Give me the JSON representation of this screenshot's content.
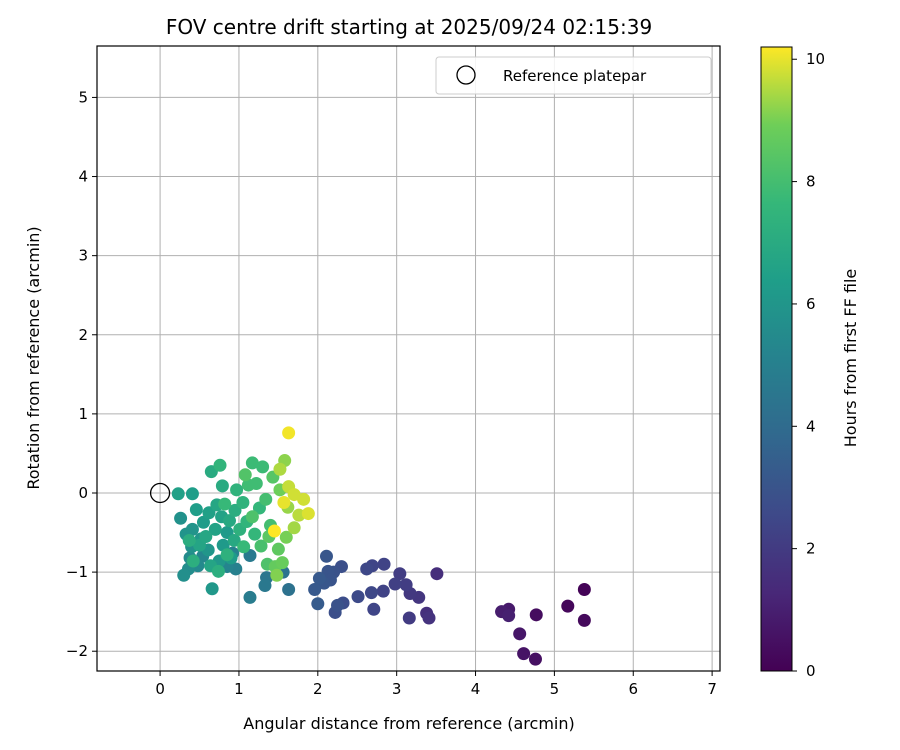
{
  "chart_data": {
    "type": "scatter",
    "title": "FOV centre drift starting at 2025/09/24 02:15:39",
    "xlabel": "Angular distance from reference (arcmin)",
    "ylabel": "Rotation from reference (arcmin)",
    "xlim": [
      -0.8,
      7.1
    ],
    "ylim": [
      -2.25,
      5.65
    ],
    "xticks": [
      0,
      1,
      2,
      3,
      4,
      5,
      6,
      7
    ],
    "yticks": [
      -2,
      -1,
      0,
      1,
      2,
      3,
      4,
      5
    ],
    "grid": true,
    "legend": {
      "position": "top-right",
      "entries": [
        "Reference platepar"
      ]
    },
    "reference_point": {
      "x": 0,
      "y": 0,
      "label": "Reference platepar"
    },
    "colorbar": {
      "label": "Hours from first FF file",
      "range": [
        0,
        10.2
      ],
      "ticks": [
        0,
        2,
        4,
        6,
        8,
        10
      ],
      "colormap": "viridis"
    },
    "points": [
      {
        "x": 5.38,
        "y": -1.22,
        "t": 0.1
      },
      {
        "x": 5.17,
        "y": -1.43,
        "t": 0.2
      },
      {
        "x": 5.38,
        "y": -1.61,
        "t": 0.3
      },
      {
        "x": 4.77,
        "y": -1.54,
        "t": 0.4
      },
      {
        "x": 4.76,
        "y": -2.1,
        "t": 0.5
      },
      {
        "x": 4.61,
        "y": -2.03,
        "t": 0.6
      },
      {
        "x": 4.56,
        "y": -1.78,
        "t": 0.7
      },
      {
        "x": 4.42,
        "y": -1.47,
        "t": 0.8
      },
      {
        "x": 4.33,
        "y": -1.5,
        "t": 0.9
      },
      {
        "x": 4.42,
        "y": -1.55,
        "t": 1.0
      },
      {
        "x": 3.51,
        "y": -1.02,
        "t": 1.5
      },
      {
        "x": 3.38,
        "y": -1.52,
        "t": 1.6
      },
      {
        "x": 3.41,
        "y": -1.58,
        "t": 1.7
      },
      {
        "x": 3.28,
        "y": -1.32,
        "t": 1.8
      },
      {
        "x": 3.17,
        "y": -1.27,
        "t": 1.9
      },
      {
        "x": 3.16,
        "y": -1.58,
        "t": 2.0
      },
      {
        "x": 3.12,
        "y": -1.16,
        "t": 2.1
      },
      {
        "x": 3.04,
        "y": -1.02,
        "t": 2.1
      },
      {
        "x": 2.98,
        "y": -1.15,
        "t": 2.2
      },
      {
        "x": 2.84,
        "y": -0.9,
        "t": 2.3
      },
      {
        "x": 2.83,
        "y": -1.24,
        "t": 2.3
      },
      {
        "x": 2.69,
        "y": -0.92,
        "t": 2.4
      },
      {
        "x": 2.71,
        "y": -1.47,
        "t": 2.4
      },
      {
        "x": 2.62,
        "y": -0.96,
        "t": 2.5
      },
      {
        "x": 2.68,
        "y": -1.26,
        "t": 2.5
      },
      {
        "x": 2.51,
        "y": -1.31,
        "t": 2.6
      },
      {
        "x": 2.32,
        "y": -1.39,
        "t": 2.7
      },
      {
        "x": 2.3,
        "y": -0.93,
        "t": 2.8
      },
      {
        "x": 2.22,
        "y": -1.51,
        "t": 2.8
      },
      {
        "x": 2.25,
        "y": -1.42,
        "t": 2.9
      },
      {
        "x": 2.2,
        "y": -1.0,
        "t": 2.9
      },
      {
        "x": 2.13,
        "y": -0.99,
        "t": 3.0
      },
      {
        "x": 2.16,
        "y": -1.1,
        "t": 3.0
      },
      {
        "x": 2.11,
        "y": -0.8,
        "t": 3.1
      },
      {
        "x": 2.08,
        "y": -1.14,
        "t": 3.1
      },
      {
        "x": 2.02,
        "y": -1.08,
        "t": 3.2
      },
      {
        "x": 1.96,
        "y": -1.22,
        "t": 3.2
      },
      {
        "x": 2.0,
        "y": -1.4,
        "t": 3.3
      },
      {
        "x": 1.63,
        "y": -1.22,
        "t": 4.3
      },
      {
        "x": 1.56,
        "y": -1.0,
        "t": 4.4
      },
      {
        "x": 1.35,
        "y": -1.07,
        "t": 4.5
      },
      {
        "x": 1.33,
        "y": -1.17,
        "t": 4.6
      },
      {
        "x": 1.14,
        "y": -0.79,
        "t": 4.7
      },
      {
        "x": 1.14,
        "y": -1.32,
        "t": 4.8
      },
      {
        "x": 0.96,
        "y": -0.96,
        "t": 5.0
      },
      {
        "x": 0.92,
        "y": -0.76,
        "t": 5.1
      },
      {
        "x": 0.85,
        "y": -0.93,
        "t": 5.2
      },
      {
        "x": 0.54,
        "y": -0.8,
        "t": 5.3
      },
      {
        "x": 0.48,
        "y": -0.92,
        "t": 5.4
      },
      {
        "x": 0.38,
        "y": -0.82,
        "t": 5.5
      },
      {
        "x": 0.36,
        "y": -0.96,
        "t": 5.6
      },
      {
        "x": 0.3,
        "y": -1.04,
        "t": 5.7
      },
      {
        "x": 0.26,
        "y": -0.32,
        "t": 5.8
      },
      {
        "x": 0.4,
        "y": -0.68,
        "t": 5.8
      },
      {
        "x": 0.33,
        "y": -0.52,
        "t": 5.9
      },
      {
        "x": 0.41,
        "y": -0.46,
        "t": 5.9
      },
      {
        "x": 0.52,
        "y": -0.58,
        "t": 6.0
      },
      {
        "x": 0.61,
        "y": -0.72,
        "t": 6.0
      },
      {
        "x": 0.66,
        "y": -1.21,
        "t": 6.1
      },
      {
        "x": 0.75,
        "y": -0.86,
        "t": 6.1
      },
      {
        "x": 0.8,
        "y": -0.66,
        "t": 6.2
      },
      {
        "x": 0.85,
        "y": -0.5,
        "t": 6.2
      },
      {
        "x": 0.9,
        "y": -0.82,
        "t": 6.3
      },
      {
        "x": 0.55,
        "y": -0.37,
        "t": 6.3
      },
      {
        "x": 0.46,
        "y": -0.21,
        "t": 6.4
      },
      {
        "x": 0.41,
        "y": -0.01,
        "t": 6.4
      },
      {
        "x": 0.23,
        "y": -0.01,
        "t": 6.5
      },
      {
        "x": 0.62,
        "y": -0.25,
        "t": 6.5
      },
      {
        "x": 0.7,
        "y": -0.46,
        "t": 6.6
      },
      {
        "x": 0.78,
        "y": -0.3,
        "t": 6.6
      },
      {
        "x": 0.64,
        "y": -0.92,
        "t": 6.7
      },
      {
        "x": 0.5,
        "y": -0.66,
        "t": 6.7
      },
      {
        "x": 0.58,
        "y": -0.55,
        "t": 6.8
      },
      {
        "x": 0.72,
        "y": -0.15,
        "t": 6.8
      },
      {
        "x": 0.88,
        "y": -0.35,
        "t": 6.9
      },
      {
        "x": 0.94,
        "y": -0.6,
        "t": 6.9
      },
      {
        "x": 0.65,
        "y": 0.27,
        "t": 7.0
      },
      {
        "x": 0.79,
        "y": 0.09,
        "t": 7.0
      },
      {
        "x": 0.95,
        "y": -0.22,
        "t": 7.1
      },
      {
        "x": 0.37,
        "y": -0.6,
        "t": 7.1
      },
      {
        "x": 0.42,
        "y": -0.86,
        "t": 7.2
      },
      {
        "x": 0.74,
        "y": -0.99,
        "t": 7.2
      },
      {
        "x": 0.85,
        "y": -0.78,
        "t": 7.3
      },
      {
        "x": 1.01,
        "y": -0.46,
        "t": 7.3
      },
      {
        "x": 1.05,
        "y": -0.12,
        "t": 7.4
      },
      {
        "x": 0.97,
        "y": 0.04,
        "t": 7.4
      },
      {
        "x": 0.76,
        "y": 0.35,
        "t": 7.5
      },
      {
        "x": 1.1,
        "y": -0.36,
        "t": 7.5
      },
      {
        "x": 1.2,
        "y": -0.52,
        "t": 7.6
      },
      {
        "x": 1.26,
        "y": -0.19,
        "t": 7.6
      },
      {
        "x": 1.06,
        "y": -0.68,
        "t": 7.7
      },
      {
        "x": 0.82,
        "y": -0.14,
        "t": 7.7
      },
      {
        "x": 1.17,
        "y": 0.38,
        "t": 7.8
      },
      {
        "x": 1.3,
        "y": 0.33,
        "t": 7.8
      },
      {
        "x": 1.12,
        "y": 0.1,
        "t": 7.9
      },
      {
        "x": 1.22,
        "y": 0.12,
        "t": 7.9
      },
      {
        "x": 1.34,
        "y": -0.08,
        "t": 8.0
      },
      {
        "x": 1.4,
        "y": -0.41,
        "t": 8.0
      },
      {
        "x": 1.28,
        "y": -0.67,
        "t": 8.1
      },
      {
        "x": 1.36,
        "y": -0.9,
        "t": 8.2
      },
      {
        "x": 1.17,
        "y": -0.3,
        "t": 8.2
      },
      {
        "x": 1.08,
        "y": 0.23,
        "t": 8.3
      },
      {
        "x": 1.43,
        "y": 0.2,
        "t": 8.4
      },
      {
        "x": 1.38,
        "y": -0.55,
        "t": 8.5
      },
      {
        "x": 1.5,
        "y": -0.71,
        "t": 8.6
      },
      {
        "x": 1.46,
        "y": -0.93,
        "t": 8.7
      },
      {
        "x": 1.55,
        "y": -0.88,
        "t": 8.8
      },
      {
        "x": 1.52,
        "y": 0.04,
        "t": 8.9
      },
      {
        "x": 1.6,
        "y": -0.56,
        "t": 9.0
      },
      {
        "x": 1.48,
        "y": -1.04,
        "t": 9.1
      },
      {
        "x": 1.58,
        "y": 0.41,
        "t": 9.2
      },
      {
        "x": 1.62,
        "y": -0.18,
        "t": 9.3
      },
      {
        "x": 1.7,
        "y": -0.44,
        "t": 9.4
      },
      {
        "x": 1.52,
        "y": 0.3,
        "t": 9.5
      },
      {
        "x": 1.76,
        "y": -0.28,
        "t": 9.6
      },
      {
        "x": 1.63,
        "y": 0.08,
        "t": 9.7
      },
      {
        "x": 1.7,
        "y": -0.02,
        "t": 9.8
      },
      {
        "x": 1.82,
        "y": -0.08,
        "t": 9.8
      },
      {
        "x": 1.88,
        "y": -0.26,
        "t": 9.9
      },
      {
        "x": 1.57,
        "y": -0.12,
        "t": 10.0
      },
      {
        "x": 1.63,
        "y": 0.76,
        "t": 10.1
      },
      {
        "x": 1.45,
        "y": -0.48,
        "t": 10.2
      }
    ]
  }
}
